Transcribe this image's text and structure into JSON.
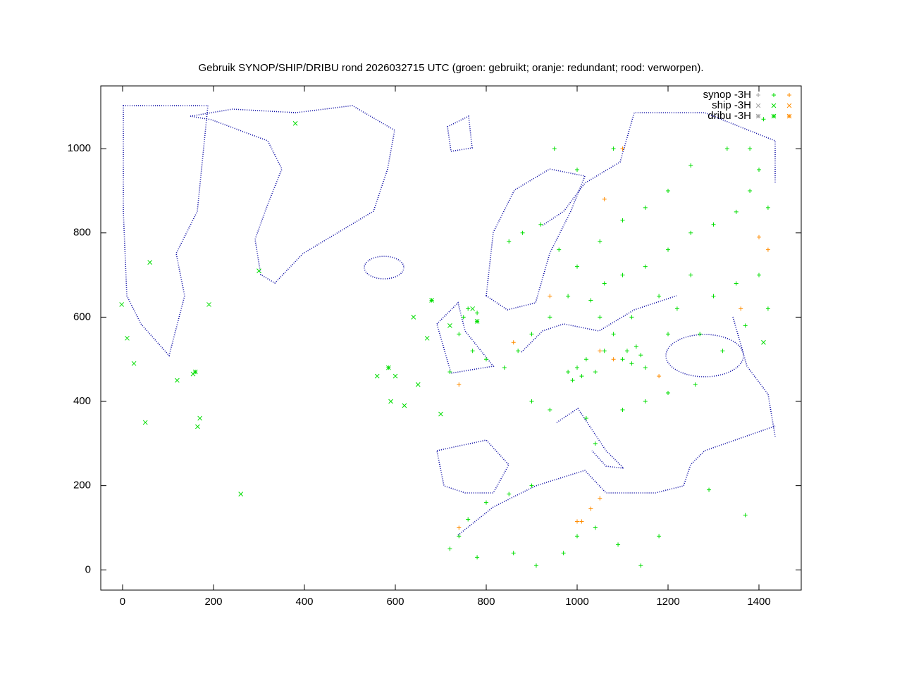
{
  "chart_data": {
    "type": "scatter",
    "title": "Gebruik SYNOP/SHIP/DRIBU rond 2026032715 UTC (groen: gebruikt; oranje: redundant; rood: verworpen).",
    "xlim": [
      -48,
      1493
    ],
    "ylim": [
      -48,
      1149
    ],
    "xticks": [
      0,
      200,
      400,
      600,
      800,
      1000,
      1200,
      1400
    ],
    "yticks": [
      0,
      200,
      400,
      600,
      800,
      1000
    ],
    "legend": "top-right",
    "series": [
      {
        "name": "synop -3H",
        "marker": "plus",
        "groups": [
          {
            "color": "#a0a0a0",
            "x": [],
            "y": []
          },
          {
            "color": "#00dd00",
            "x": [
              1000,
              1010,
              990,
              1020,
              980,
              1040,
              1060,
              1100,
              1120,
              1140,
              1150,
              1130,
              1110,
              1080,
              1050,
              1030,
              1060,
              1100,
              1150,
              1200,
              1250,
              1300,
              1350,
              1380,
              1400,
              1330,
              1250,
              1200,
              1150,
              1100,
              1050,
              1000,
              980,
              940,
              900,
              870,
              840,
              800,
              770,
              740,
              720,
              760,
              780,
              750,
              960,
              920,
              880,
              850,
              1120,
              1180,
              1220,
              1270,
              1320,
              1370,
              1420,
              1400,
              1350,
              1300,
              1250,
              1200,
              1260,
              1200,
              1150,
              1100,
              1020,
              940,
              900,
              1040,
              900,
              850,
              800,
              760,
              740,
              720,
              780,
              860,
              910,
              970,
              1000,
              1040,
              1090,
              1140,
              1180,
              1290,
              1370,
              1410,
              1420,
              1380,
              1080,
              1000,
              950
            ],
            "y": [
              480,
              460,
              450,
              500,
              470,
              470,
              520,
              500,
              490,
              510,
              480,
              530,
              520,
              560,
              600,
              640,
              680,
              700,
              720,
              760,
              800,
              820,
              850,
              900,
              950,
              1000,
              960,
              900,
              860,
              830,
              780,
              720,
              650,
              600,
              560,
              520,
              480,
              500,
              520,
              560,
              470,
              620,
              610,
              600,
              760,
              820,
              800,
              780,
              600,
              650,
              620,
              560,
              520,
              580,
              620,
              700,
              680,
              650,
              700,
              560,
              440,
              420,
              400,
              380,
              360,
              380,
              400,
              300,
              200,
              180,
              160,
              120,
              80,
              50,
              30,
              40,
              10,
              40,
              80,
              100,
              60,
              10,
              80,
              190,
              130,
              1070,
              860,
              1000,
              1000,
              950,
              1000
            ]
          },
          {
            "color": "#ff8c00",
            "x": [
              740,
              1080,
              1050,
              1180,
              1000,
              1010,
              1050,
              1030,
              1060,
              1400,
              1420,
              1360,
              1100,
              940,
              740,
              860
            ],
            "y": [
              440,
              500,
              520,
              460,
              115,
              115,
              170,
              145,
              880,
              790,
              760,
              620,
              1000,
              650,
              100,
              540
            ]
          }
        ]
      },
      {
        "name": "ship -3H",
        "marker": "cross",
        "groups": [
          {
            "color": "#a0a0a0",
            "x": [],
            "y": []
          },
          {
            "color": "#00dd00",
            "x": [
              -2,
              10,
              25,
              50,
              60,
              120,
              155,
              165,
              170,
              190,
              260,
              380,
              560,
              590,
              600,
              620,
              640,
              650,
              670,
              700,
              720,
              770,
              300,
              1410
            ],
            "y": [
              630,
              550,
              490,
              350,
              730,
              450,
              465,
              340,
              360,
              630,
              180,
              1060,
              460,
              400,
              460,
              390,
              600,
              440,
              550,
              370,
              580,
              620,
              710,
              540
            ]
          },
          {
            "color": "#ff8c00",
            "x": [],
            "y": []
          }
        ]
      },
      {
        "name": "dribu -3H",
        "marker": "star",
        "groups": [
          {
            "color": "#a0a0a0",
            "x": [],
            "y": []
          },
          {
            "color": "#00dd00",
            "x": [
              585,
              160,
              780,
              680
            ],
            "y": [
              480,
              470,
              590,
              640
            ]
          },
          {
            "color": "#ff8c00",
            "x": [],
            "y": []
          }
        ]
      }
    ]
  }
}
